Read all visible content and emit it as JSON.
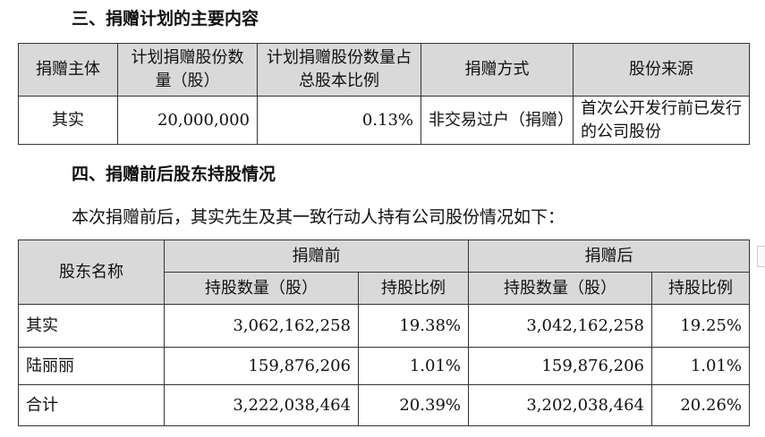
{
  "section3": {
    "title": "三、捐赠计划的主要内容",
    "headers": [
      "捐赠主体",
      "计划捐赠股份数量（股）",
      "计划捐赠股份数量占总股本比例",
      "捐赠方式",
      "股份来源"
    ],
    "row": [
      "其实",
      "20,000,000",
      "0.13%",
      "非交易过户（捐赠）",
      "首次公开发行前已发行的公司股份"
    ]
  },
  "section4": {
    "title": "四、捐赠前后股东持股情况",
    "intro": "本次捐赠前后，其实先生及其一致行动人持有公司股份情况如下：",
    "header_name": "股东名称",
    "header_before": "捐赠前",
    "header_after": "捐赠后",
    "sub_shares": "持股数量（股）",
    "sub_ratio": "持股比例",
    "rows": [
      [
        "其实",
        "3,062,162,258",
        "19.38%",
        "3,042,162,258",
        "19.25%"
      ],
      [
        "陆丽丽",
        "159,876,206",
        "1.01%",
        "159,876,206",
        "1.01%"
      ],
      [
        "合计",
        "3,222,038,464",
        "20.39%",
        "3,202,038,464",
        "20.26%"
      ]
    ]
  }
}
